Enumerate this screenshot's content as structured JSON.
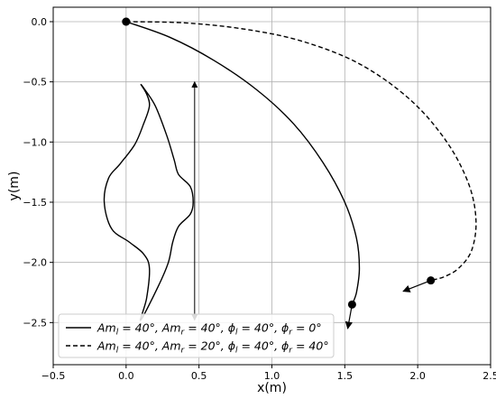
{
  "chart_data": {
    "type": "line",
    "xlabel": "x(m)",
    "ylabel": "y(m)",
    "xlim": [
      -0.5,
      2.5
    ],
    "ylim": [
      -2.85,
      0.12
    ],
    "grid": true,
    "legend_placement": "bottom-left",
    "x_ticks": [
      -0.5,
      0.0,
      0.5,
      1.0,
      1.5,
      2.0,
      2.5
    ],
    "x_tick_labels": [
      "−0.5",
      "0.0",
      "0.5",
      "1.0",
      "1.5",
      "2.0",
      "2.5"
    ],
    "y_ticks": [
      0.0,
      -0.5,
      -1.0,
      -1.5,
      -2.0,
      -2.5
    ],
    "y_tick_labels": [
      "0.0",
      "−0.5",
      "−1.0",
      "−1.5",
      "−2.0",
      "−2.5"
    ],
    "series": [
      {
        "label_parts": [
          "Am",
          "l",
          " = 40°, Am",
          "r",
          " = 40°, ϕ",
          "l",
          " = 40°, ϕ",
          "r",
          " = 0°"
        ],
        "style": "solid",
        "x": [
          0.0,
          0.3,
          0.6,
          0.9,
          1.15,
          1.35,
          1.5,
          1.58,
          1.6,
          1.58,
          1.55
        ],
        "y": [
          0.0,
          -0.13,
          -0.32,
          -0.57,
          -0.85,
          -1.17,
          -1.5,
          -1.8,
          -2.05,
          -2.25,
          -2.35
        ],
        "start": [
          0.0,
          0.0
        ],
        "end_marker": [
          1.55,
          -2.35
        ],
        "arrow_to": [
          1.52,
          -2.55
        ]
      },
      {
        "label_parts": [
          "Am",
          "l",
          " = 40°, Am",
          "r",
          " = 20°, ϕ",
          "l",
          " = 40°, ϕ",
          "r",
          " = 40°"
        ],
        "style": "dashed",
        "x": [
          0.0,
          0.4,
          0.8,
          1.2,
          1.6,
          1.95,
          2.2,
          2.35,
          2.4,
          2.37,
          2.28,
          2.18,
          2.09
        ],
        "y": [
          0.0,
          -0.01,
          -0.06,
          -0.16,
          -0.35,
          -0.65,
          -1.0,
          -1.35,
          -1.65,
          -1.9,
          -2.05,
          -2.12,
          -2.15
        ],
        "start": [
          0.0,
          0.0
        ],
        "end_marker": [
          2.09,
          -2.15
        ],
        "arrow_to": [
          1.9,
          -2.24
        ]
      }
    ],
    "annotation_shape": {
      "x": [
        0.1,
        0.12,
        0.2,
        0.28,
        0.33,
        0.36,
        0.44,
        0.46,
        0.44,
        0.36,
        0.32,
        0.29,
        0.22,
        0.1,
        0.14,
        0.16,
        0.12,
        0.02,
        -0.1,
        -0.15,
        -0.12,
        -0.04,
        0.06,
        0.12,
        0.16,
        0.14,
        0.1
      ],
      "y": [
        -0.52,
        -0.55,
        -0.7,
        -0.95,
        -1.15,
        -1.27,
        -1.37,
        -1.5,
        -1.6,
        -1.7,
        -1.83,
        -2.0,
        -2.2,
        -2.48,
        -2.3,
        -2.05,
        -1.93,
        -1.83,
        -1.72,
        -1.5,
        -1.3,
        -1.18,
        -1.02,
        -0.85,
        -0.7,
        -0.6,
        -0.52
      ]
    },
    "annotation_arrow": {
      "x": 0.47,
      "y_top": -0.5,
      "y_bottom": -2.48
    }
  }
}
